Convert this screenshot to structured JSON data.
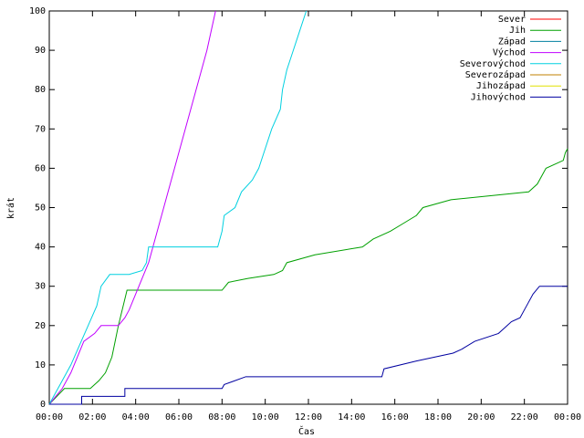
{
  "chart_data": {
    "type": "line",
    "xlabel": "Čas",
    "ylabel": "krát",
    "xlim": [
      0,
      24
    ],
    "ylim": [
      0,
      100
    ],
    "xticks": [
      {
        "value": 0,
        "label": "00:00"
      },
      {
        "value": 2,
        "label": "02:00"
      },
      {
        "value": 4,
        "label": "04:00"
      },
      {
        "value": 6,
        "label": "06:00"
      },
      {
        "value": 8,
        "label": "08:00"
      },
      {
        "value": 10,
        "label": "10:00"
      },
      {
        "value": 12,
        "label": "12:00"
      },
      {
        "value": 14,
        "label": "14:00"
      },
      {
        "value": 16,
        "label": "16:00"
      },
      {
        "value": 18,
        "label": "18:00"
      },
      {
        "value": 20,
        "label": "20:00"
      },
      {
        "value": 22,
        "label": "22:00"
      },
      {
        "value": 24,
        "label": "00:00"
      }
    ],
    "yticks": [
      0,
      10,
      20,
      30,
      40,
      50,
      60,
      70,
      80,
      90,
      100
    ],
    "legend": "top-right",
    "series": [
      {
        "name": "Sever",
        "color": "#ff0000",
        "x": [],
        "values": []
      },
      {
        "name": "Jih",
        "color": "#00a000",
        "x": [
          0,
          0.7,
          1.9,
          2.3,
          2.6,
          2.9,
          3.2,
          3.6,
          8.0,
          8.3,
          9.2,
          10.4,
          10.8,
          11.0,
          12.3,
          14.5,
          15.0,
          15.8,
          16.4,
          17.0,
          17.3,
          18.6,
          22.2,
          22.6,
          22.8,
          23.0,
          23.8,
          23.9,
          24.0
        ],
        "values": [
          0,
          4,
          4,
          6,
          8,
          12,
          20,
          29,
          29,
          31,
          32,
          33,
          34,
          36,
          38,
          40,
          42,
          44,
          46,
          48,
          50,
          52,
          54,
          56,
          58,
          60,
          62,
          64,
          65
        ]
      },
      {
        "name": "Západ",
        "color": "#0080a0",
        "x": [],
        "values": []
      },
      {
        "name": "Východ",
        "color": "#c000ff",
        "x": [
          0,
          0.6,
          1.0,
          1.3,
          1.6,
          2.1,
          2.4,
          3.2,
          3.5,
          3.7,
          4.0,
          4.3,
          4.6,
          4.8,
          5.0,
          5.3,
          5.8,
          6.3,
          6.8,
          7.3,
          7.7
        ],
        "values": [
          0,
          4,
          8,
          12,
          16,
          18,
          20,
          20,
          22,
          24,
          28,
          32,
          36,
          40,
          44,
          50,
          60,
          70,
          80,
          90,
          100
        ]
      },
      {
        "name": "Severovýchod",
        "color": "#00d0e0",
        "x": [
          0,
          0.5,
          1.0,
          1.4,
          1.8,
          2.2,
          2.4,
          2.8,
          3.7,
          4.3,
          4.5,
          4.6,
          7.8,
          8.0,
          8.1,
          8.6,
          8.9,
          9.4,
          9.7,
          10.0,
          10.3,
          10.7,
          10.8,
          11.0,
          11.3,
          11.6,
          11.9
        ],
        "values": [
          0,
          5,
          10,
          15,
          20,
          25,
          30,
          33,
          33,
          34,
          36,
          40,
          40,
          44,
          48,
          50,
          54,
          57,
          60,
          65,
          70,
          75,
          80,
          85,
          90,
          95,
          100
        ]
      },
      {
        "name": "Severozápad",
        "color": "#c08000",
        "x": [],
        "values": []
      },
      {
        "name": "Jihozápad",
        "color": "#e0e000",
        "x": [],
        "values": []
      },
      {
        "name": "Jihovýchod",
        "color": "#0000a0",
        "x": [
          0,
          1.5,
          1.5,
          3.5,
          3.5,
          8.0,
          8.1,
          9.1,
          15.4,
          15.5,
          17.0,
          18.7,
          19.1,
          19.7,
          20.8,
          21.0,
          21.4,
          21.8,
          22.0,
          22.2,
          22.4,
          22.7,
          24.0
        ],
        "values": [
          0,
          0,
          2,
          2,
          4,
          4,
          5,
          7,
          7,
          9,
          11,
          13,
          14,
          16,
          18,
          19,
          21,
          22,
          24,
          26,
          28,
          30,
          30
        ]
      }
    ]
  }
}
